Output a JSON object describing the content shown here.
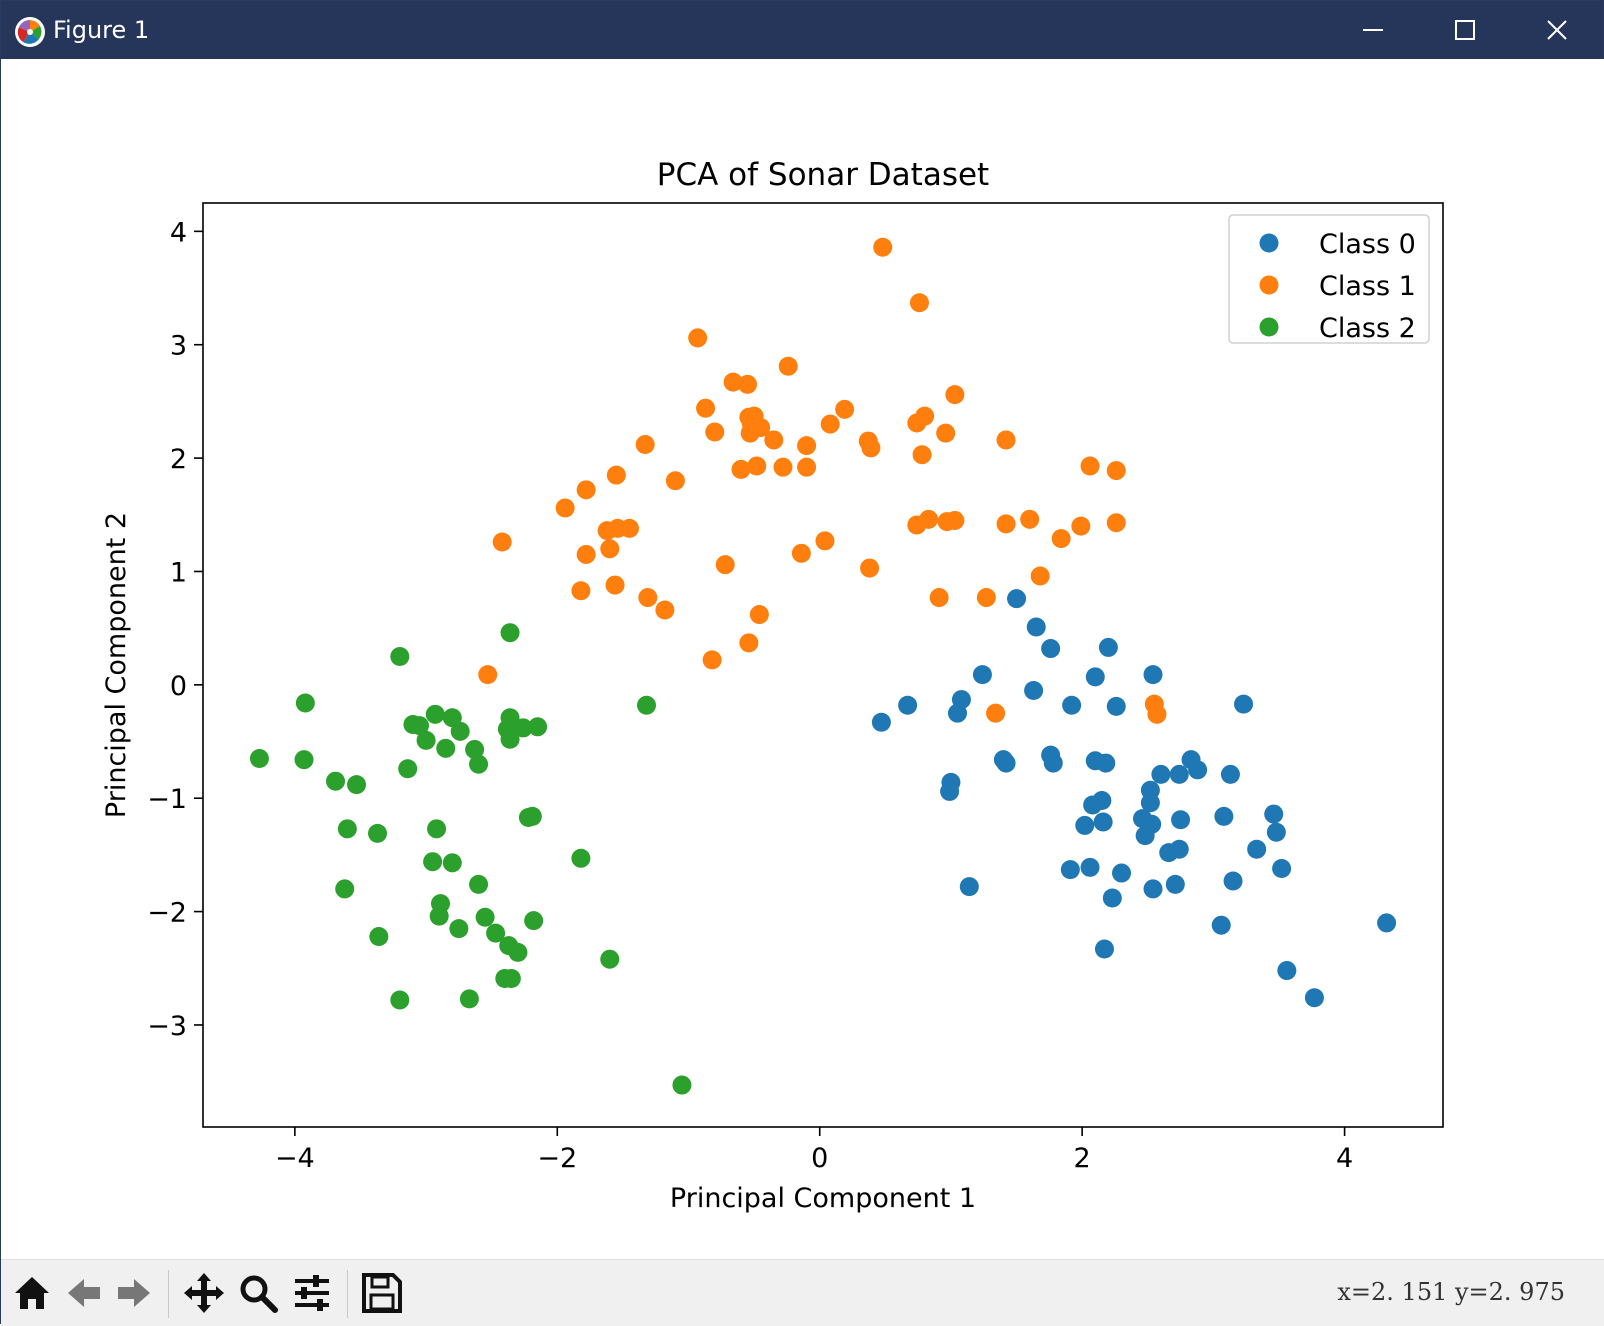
{
  "window": {
    "title": "Figure 1"
  },
  "toolbar": {
    "coordinates": "x=2. 151  y=2. 975",
    "buttons": [
      "home",
      "back",
      "forward",
      "pan",
      "zoom",
      "configure-subplots",
      "save"
    ]
  },
  "chart_data": {
    "type": "scatter",
    "title": "PCA of Sonar Dataset",
    "xlabel": "Principal Component 1",
    "ylabel": "Principal Component 2",
    "xlim": [
      -4.7,
      4.75
    ],
    "ylim": [
      -3.9,
      4.25
    ],
    "xticks": [
      -4,
      -2,
      0,
      2,
      4
    ],
    "yticks": [
      -3,
      -2,
      -1,
      0,
      1,
      2,
      3,
      4
    ],
    "legend_position": "top-right",
    "grid": false,
    "series": [
      {
        "name": "Class 0",
        "color": "#1f77b4",
        "points": [
          [
            1.5,
            0.76
          ],
          [
            1.65,
            0.51
          ],
          [
            1.76,
            0.32
          ],
          [
            2.2,
            0.33
          ],
          [
            2.54,
            0.09
          ],
          [
            2.1,
            0.07
          ],
          [
            1.24,
            0.09
          ],
          [
            1.08,
            -0.13
          ],
          [
            0.67,
            -0.18
          ],
          [
            1.05,
            -0.25
          ],
          [
            0.47,
            -0.33
          ],
          [
            1.63,
            -0.05
          ],
          [
            1.92,
            -0.18
          ],
          [
            2.26,
            -0.19
          ],
          [
            3.23,
            -0.17
          ],
          [
            1.4,
            -0.66
          ],
          [
            1.42,
            -0.69
          ],
          [
            1.76,
            -0.62
          ],
          [
            1.78,
            -0.69
          ],
          [
            2.1,
            -0.67
          ],
          [
            2.18,
            -0.69
          ],
          [
            2.6,
            -0.79
          ],
          [
            2.74,
            -0.79
          ],
          [
            2.83,
            -0.66
          ],
          [
            2.88,
            -0.75
          ],
          [
            3.13,
            -0.79
          ],
          [
            1.0,
            -0.86
          ],
          [
            0.99,
            -0.94
          ],
          [
            2.52,
            -0.93
          ],
          [
            2.08,
            -1.06
          ],
          [
            2.15,
            -1.02
          ],
          [
            2.52,
            -1.04
          ],
          [
            2.46,
            -1.18
          ],
          [
            2.53,
            -1.23
          ],
          [
            2.75,
            -1.19
          ],
          [
            2.02,
            -1.24
          ],
          [
            2.16,
            -1.21
          ],
          [
            2.48,
            -1.33
          ],
          [
            3.08,
            -1.16
          ],
          [
            3.46,
            -1.14
          ],
          [
            3.48,
            -1.3
          ],
          [
            2.66,
            -1.48
          ],
          [
            2.74,
            -1.45
          ],
          [
            3.33,
            -1.45
          ],
          [
            1.91,
            -1.63
          ],
          [
            2.06,
            -1.61
          ],
          [
            2.3,
            -1.66
          ],
          [
            2.54,
            -1.8
          ],
          [
            2.71,
            -1.76
          ],
          [
            3.15,
            -1.73
          ],
          [
            3.52,
            -1.62
          ],
          [
            1.14,
            -1.78
          ],
          [
            2.23,
            -1.88
          ],
          [
            3.06,
            -2.12
          ],
          [
            4.32,
            -2.1
          ],
          [
            2.17,
            -2.33
          ],
          [
            3.56,
            -2.52
          ],
          [
            3.77,
            -2.76
          ]
        ]
      },
      {
        "name": "Class 1",
        "color": "#ff7f0e",
        "points": [
          [
            0.48,
            3.86
          ],
          [
            0.76,
            3.37
          ],
          [
            -0.93,
            3.06
          ],
          [
            -0.24,
            2.81
          ],
          [
            -0.66,
            2.67
          ],
          [
            -0.55,
            2.65
          ],
          [
            1.03,
            2.56
          ],
          [
            -0.87,
            2.44
          ],
          [
            0.19,
            2.43
          ],
          [
            -0.54,
            2.36
          ],
          [
            -0.5,
            2.37
          ],
          [
            -0.52,
            2.3
          ],
          [
            -0.45,
            2.27
          ],
          [
            0.08,
            2.3
          ],
          [
            0.74,
            2.31
          ],
          [
            0.8,
            2.37
          ],
          [
            0.96,
            2.22
          ],
          [
            -0.8,
            2.23
          ],
          [
            -0.53,
            2.22
          ],
          [
            -0.35,
            2.16
          ],
          [
            0.37,
            2.15
          ],
          [
            0.39,
            2.09
          ],
          [
            1.42,
            2.16
          ],
          [
            -0.1,
            2.11
          ],
          [
            -1.33,
            2.12
          ],
          [
            -0.6,
            1.9
          ],
          [
            -0.48,
            1.93
          ],
          [
            -0.28,
            1.92
          ],
          [
            -0.1,
            1.92
          ],
          [
            0.78,
            2.03
          ],
          [
            2.06,
            1.93
          ],
          [
            2.26,
            1.89
          ],
          [
            -1.55,
            1.85
          ],
          [
            -1.1,
            1.8
          ],
          [
            -1.78,
            1.72
          ],
          [
            -1.94,
            1.56
          ],
          [
            -1.62,
            1.36
          ],
          [
            -1.54,
            1.38
          ],
          [
            -1.45,
            1.38
          ],
          [
            0.74,
            1.41
          ],
          [
            0.83,
            1.46
          ],
          [
            0.97,
            1.44
          ],
          [
            1.03,
            1.45
          ],
          [
            1.42,
            1.42
          ],
          [
            1.6,
            1.46
          ],
          [
            1.99,
            1.4
          ],
          [
            2.26,
            1.43
          ],
          [
            -2.42,
            1.26
          ],
          [
            -1.6,
            1.2
          ],
          [
            1.84,
            1.29
          ],
          [
            -1.78,
            1.15
          ],
          [
            -0.14,
            1.16
          ],
          [
            0.04,
            1.27
          ],
          [
            -0.72,
            1.06
          ],
          [
            0.38,
            1.03
          ],
          [
            1.68,
            0.96
          ],
          [
            -1.82,
            0.83
          ],
          [
            -1.56,
            0.88
          ],
          [
            -1.31,
            0.77
          ],
          [
            0.91,
            0.77
          ],
          [
            1.27,
            0.77
          ],
          [
            -1.18,
            0.66
          ],
          [
            -0.46,
            0.62
          ],
          [
            -0.54,
            0.37
          ],
          [
            -0.82,
            0.22
          ],
          [
            -2.53,
            0.09
          ],
          [
            1.34,
            -0.25
          ],
          [
            2.55,
            -0.17
          ],
          [
            2.57,
            -0.26
          ]
        ]
      },
      {
        "name": "Class 2",
        "color": "#2ca02c",
        "points": [
          [
            -2.36,
            0.46
          ],
          [
            -3.2,
            0.25
          ],
          [
            -3.92,
            -0.16
          ],
          [
            -1.32,
            -0.18
          ],
          [
            -2.93,
            -0.26
          ],
          [
            -2.8,
            -0.29
          ],
          [
            -2.36,
            -0.29
          ],
          [
            -3.1,
            -0.35
          ],
          [
            -3.05,
            -0.36
          ],
          [
            -2.38,
            -0.39
          ],
          [
            -2.26,
            -0.38
          ],
          [
            -2.15,
            -0.37
          ],
          [
            -2.74,
            -0.41
          ],
          [
            -3.0,
            -0.49
          ],
          [
            -2.36,
            -0.48
          ],
          [
            -2.85,
            -0.56
          ],
          [
            -2.63,
            -0.57
          ],
          [
            -2.6,
            -0.7
          ],
          [
            -4.27,
            -0.65
          ],
          [
            -3.93,
            -0.66
          ],
          [
            -3.14,
            -0.74
          ],
          [
            -3.69,
            -0.85
          ],
          [
            -3.53,
            -0.88
          ],
          [
            -2.22,
            -1.17
          ],
          [
            -2.19,
            -1.16
          ],
          [
            -3.6,
            -1.27
          ],
          [
            -3.37,
            -1.31
          ],
          [
            -2.92,
            -1.27
          ],
          [
            -2.95,
            -1.56
          ],
          [
            -2.8,
            -1.57
          ],
          [
            -1.82,
            -1.53
          ],
          [
            -2.6,
            -1.76
          ],
          [
            -3.62,
            -1.8
          ],
          [
            -2.89,
            -1.93
          ],
          [
            -2.9,
            -2.04
          ],
          [
            -2.55,
            -2.05
          ],
          [
            -2.75,
            -2.15
          ],
          [
            -2.47,
            -2.19
          ],
          [
            -2.37,
            -2.3
          ],
          [
            -2.3,
            -2.36
          ],
          [
            -2.18,
            -2.08
          ],
          [
            -3.36,
            -2.22
          ],
          [
            -1.6,
            -2.42
          ],
          [
            -2.4,
            -2.59
          ],
          [
            -2.35,
            -2.59
          ],
          [
            -3.2,
            -2.78
          ],
          [
            -2.67,
            -2.77
          ],
          [
            -1.05,
            -3.53
          ]
        ]
      }
    ]
  }
}
